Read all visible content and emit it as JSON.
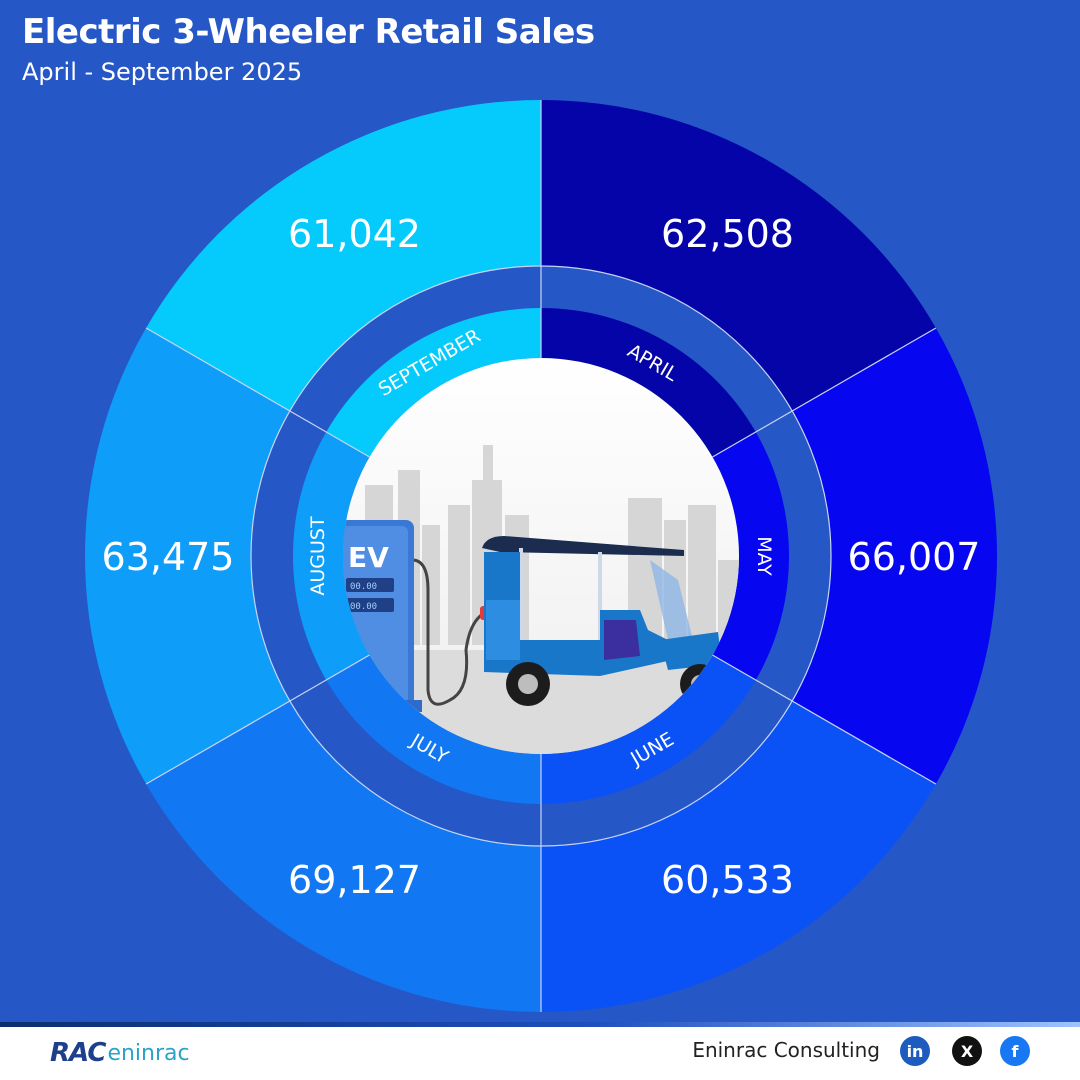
{
  "header": {
    "title": "Electric 3-Wheeler Retail Sales",
    "subtitle": "April - September 2025"
  },
  "chart_data": {
    "type": "pie",
    "title": "Electric 3-Wheeler Retail Sales",
    "subtitle": "April - September 2025",
    "categories": [
      "APRIL",
      "MAY",
      "JUNE",
      "JULY",
      "AUGUST",
      "SEPTEMBER"
    ],
    "values": [
      62508,
      66007,
      60533,
      69127,
      63475,
      61042
    ],
    "value_labels": [
      "62,508",
      "66,007",
      "60,533",
      "69,127",
      "63,475",
      "61,042"
    ],
    "colors": [
      "#0404a8",
      "#0606f0",
      "#0a52f5",
      "#1277f2",
      "#0e9df8",
      "#04cbfb"
    ]
  },
  "illustration": {
    "ev_label": "EV",
    "pump_readout_1": "00.00",
    "pump_readout_2": "00.00"
  },
  "footer": {
    "logo_rac": "RAC",
    "logo_eninrac": "eninrac",
    "company": "Eninrac Consulting",
    "linkedin_glyph": "in",
    "x_glyph": "X",
    "facebook_glyph": "f"
  }
}
